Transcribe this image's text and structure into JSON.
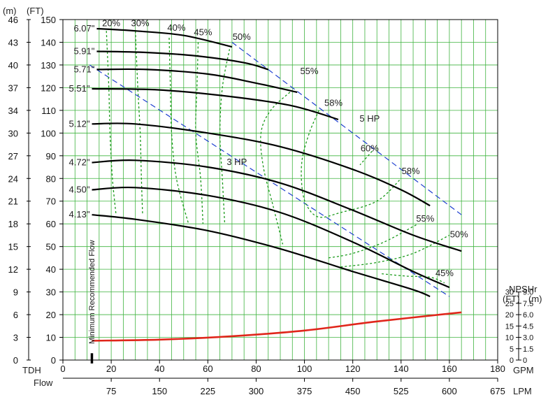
{
  "chart_data": {
    "type": "line",
    "units": {
      "meters": "(m)",
      "feet": "(FT)",
      "tdh": "TDH",
      "flow": "Flow",
      "gpm": "GPM",
      "lpm": "LPM",
      "npshr": "NPSHr",
      "npsh_ft": "(FT)",
      "npsh_m": "(m)"
    },
    "x_gpm": {
      "range": [
        0,
        180
      ],
      "ticks": [
        "0",
        "20",
        "40",
        "60",
        "80",
        "100",
        "120",
        "140",
        "160",
        "180"
      ]
    },
    "x_lpm": {
      "ticks": [
        "75",
        "150",
        "225",
        "300",
        "375",
        "450",
        "525",
        "600",
        "675"
      ]
    },
    "y_ft": {
      "range": [
        0,
        150
      ],
      "ticks": [
        "0",
        "10",
        "20",
        "30",
        "40",
        "50",
        "60",
        "70",
        "80",
        "90",
        "100",
        "110",
        "120",
        "130",
        "140",
        "150"
      ]
    },
    "y_m": {
      "ticks": [
        "0",
        "3",
        "6",
        "9",
        "12",
        "15",
        "18",
        "21",
        "24",
        "27",
        "30",
        "34",
        "37",
        "40",
        "43",
        "46"
      ]
    },
    "npsh_ft_ticks": [
      "0",
      "5",
      "10",
      "15",
      "20",
      "25",
      "30"
    ],
    "npsh_m_ticks": [
      "0",
      "1.5",
      "3.0",
      "4.5",
      "6.0",
      "7.5",
      "9.0"
    ],
    "impeller_curves": [
      {
        "name": "6.07\"",
        "points": [
          [
            14,
            146
          ],
          [
            30,
            145
          ],
          [
            50,
            143
          ],
          [
            70,
            138
          ]
        ]
      },
      {
        "name": "5.91\"",
        "points": [
          [
            14,
            136
          ],
          [
            35,
            135.5
          ],
          [
            55,
            134
          ],
          [
            75,
            131
          ],
          [
            85,
            128
          ]
        ]
      },
      {
        "name": "5.71\"",
        "points": [
          [
            14,
            128
          ],
          [
            35,
            128
          ],
          [
            60,
            126
          ],
          [
            80,
            122
          ],
          [
            97,
            118
          ]
        ]
      },
      {
        "name": "5.51\"",
        "points": [
          [
            12,
            119.5
          ],
          [
            40,
            119
          ],
          [
            70,
            116
          ],
          [
            95,
            112
          ],
          [
            114,
            106
          ]
        ]
      },
      {
        "name": "5.12\"",
        "points": [
          [
            12,
            104
          ],
          [
            30,
            104
          ],
          [
            60,
            100
          ],
          [
            90,
            94
          ],
          [
            120,
            84
          ],
          [
            140,
            75
          ],
          [
            152,
            68
          ]
        ]
      },
      {
        "name": "4.72\"",
        "points": [
          [
            12,
            87
          ],
          [
            30,
            88
          ],
          [
            60,
            85
          ],
          [
            90,
            78
          ],
          [
            120,
            66
          ],
          [
            145,
            55
          ],
          [
            165,
            48
          ]
        ]
      },
      {
        "name": "4.50\"",
        "points": [
          [
            12,
            75
          ],
          [
            30,
            76
          ],
          [
            60,
            72.5
          ],
          [
            90,
            65
          ],
          [
            120,
            52
          ],
          [
            145,
            39
          ],
          [
            160,
            32
          ]
        ]
      },
      {
        "name": "4.13\"",
        "points": [
          [
            12,
            64
          ],
          [
            30,
            62
          ],
          [
            60,
            57
          ],
          [
            90,
            49
          ],
          [
            120,
            39
          ],
          [
            145,
            31
          ],
          [
            152,
            28
          ]
        ]
      }
    ],
    "efficiency_lines": [
      {
        "name": "20%",
        "label_at": [
          20,
          147
        ],
        "points": [
          [
            18,
            145
          ],
          [
            19,
            120
          ],
          [
            19.5,
            100
          ],
          [
            20.5,
            80
          ],
          [
            22,
            64
          ]
        ]
      },
      {
        "name": "30%",
        "label_at": [
          32,
          147
        ],
        "points": [
          [
            30,
            145
          ],
          [
            31,
            120
          ],
          [
            32,
            100
          ],
          [
            32.5,
            80
          ],
          [
            33,
            64
          ]
        ]
      },
      {
        "name": "40%",
        "label_at": [
          47,
          145
        ],
        "points": [
          [
            44,
            142
          ],
          [
            44.5,
            120
          ],
          [
            45,
            100
          ],
          [
            47,
            80
          ],
          [
            52,
            60
          ]
        ]
      },
      {
        "name": "45%",
        "label_at": [
          58,
          143
        ],
        "points": [
          [
            56,
            140
          ],
          [
            55.5,
            120
          ],
          [
            55,
            100
          ],
          [
            57,
            80
          ],
          [
            58,
            60
          ]
        ]
      },
      {
        "name": "50%",
        "label_at": [
          74,
          141
        ],
        "points": [
          [
            69,
            137
          ],
          [
            66,
            120
          ],
          [
            65,
            100
          ],
          [
            66,
            80
          ],
          [
            67,
            60
          ]
        ]
      },
      {
        "name": "55%",
        "label_at": [
          102,
          126
        ],
        "points": [
          [
            94,
            118
          ],
          [
            86,
            110
          ],
          [
            82,
            100
          ],
          [
            83,
            85
          ],
          [
            87,
            68
          ],
          [
            91,
            51
          ]
        ]
      },
      {
        "name": "58%",
        "label_at": [
          112,
          112
        ],
        "points": [
          [
            106,
            110
          ],
          [
            102,
            100
          ],
          [
            99,
            88
          ],
          [
            99,
            76
          ],
          [
            101,
            68
          ],
          [
            106,
            63
          ],
          [
            115,
            65
          ],
          [
            130,
            70
          ],
          [
            140,
            80
          ]
        ]
      },
      {
        "name": "60%",
        "label_at": [
          127,
          92
        ],
        "points": [
          [
            128,
            92
          ],
          [
            123,
            86
          ]
        ]
      },
      {
        "name": "58%",
        "label_at": [
          144,
          82
        ],
        "points": [
          [
            140,
            80
          ]
        ]
      },
      {
        "name": "55%",
        "label_at": [
          150,
          61
        ],
        "points": [
          [
            110,
            45
          ],
          [
            120,
            47
          ],
          [
            133,
            52
          ],
          [
            147,
            60
          ]
        ]
      },
      {
        "name": "50%",
        "label_at": [
          164,
          54
        ],
        "points": [
          [
            115,
            41
          ],
          [
            130,
            43
          ],
          [
            145,
            47
          ],
          [
            160,
            55
          ]
        ]
      },
      {
        "name": "45%",
        "label_at": [
          158,
          37
        ],
        "points": [
          [
            132,
            38
          ],
          [
            142,
            37
          ],
          [
            152,
            36.5
          ],
          [
            158,
            34
          ]
        ]
      }
    ],
    "hp_lines": [
      {
        "name": "5 HP",
        "label_at": [
          127,
          105
        ],
        "points": [
          [
            70,
            140
          ],
          [
            165,
            64
          ]
        ]
      },
      {
        "name": "3 HP",
        "label_at": [
          72,
          86
        ],
        "points": [
          [
            11,
            130
          ],
          [
            160,
            28
          ]
        ]
      }
    ],
    "npshr_curve": {
      "points": [
        [
          12,
          8.5
        ],
        [
          40,
          9
        ],
        [
          70,
          10.5
        ],
        [
          100,
          13
        ],
        [
          130,
          17
        ],
        [
          165,
          21
        ]
      ]
    },
    "annotation": "Minimum Recommended Flow",
    "min_flow_marker_x": 12,
    "grid": true,
    "colors": {
      "impeller": "#000000",
      "efficiency": "#1a9a1a",
      "hp": "#1f3fd0",
      "npshr": "#e0261b",
      "grid": "#3fb33f"
    }
  }
}
